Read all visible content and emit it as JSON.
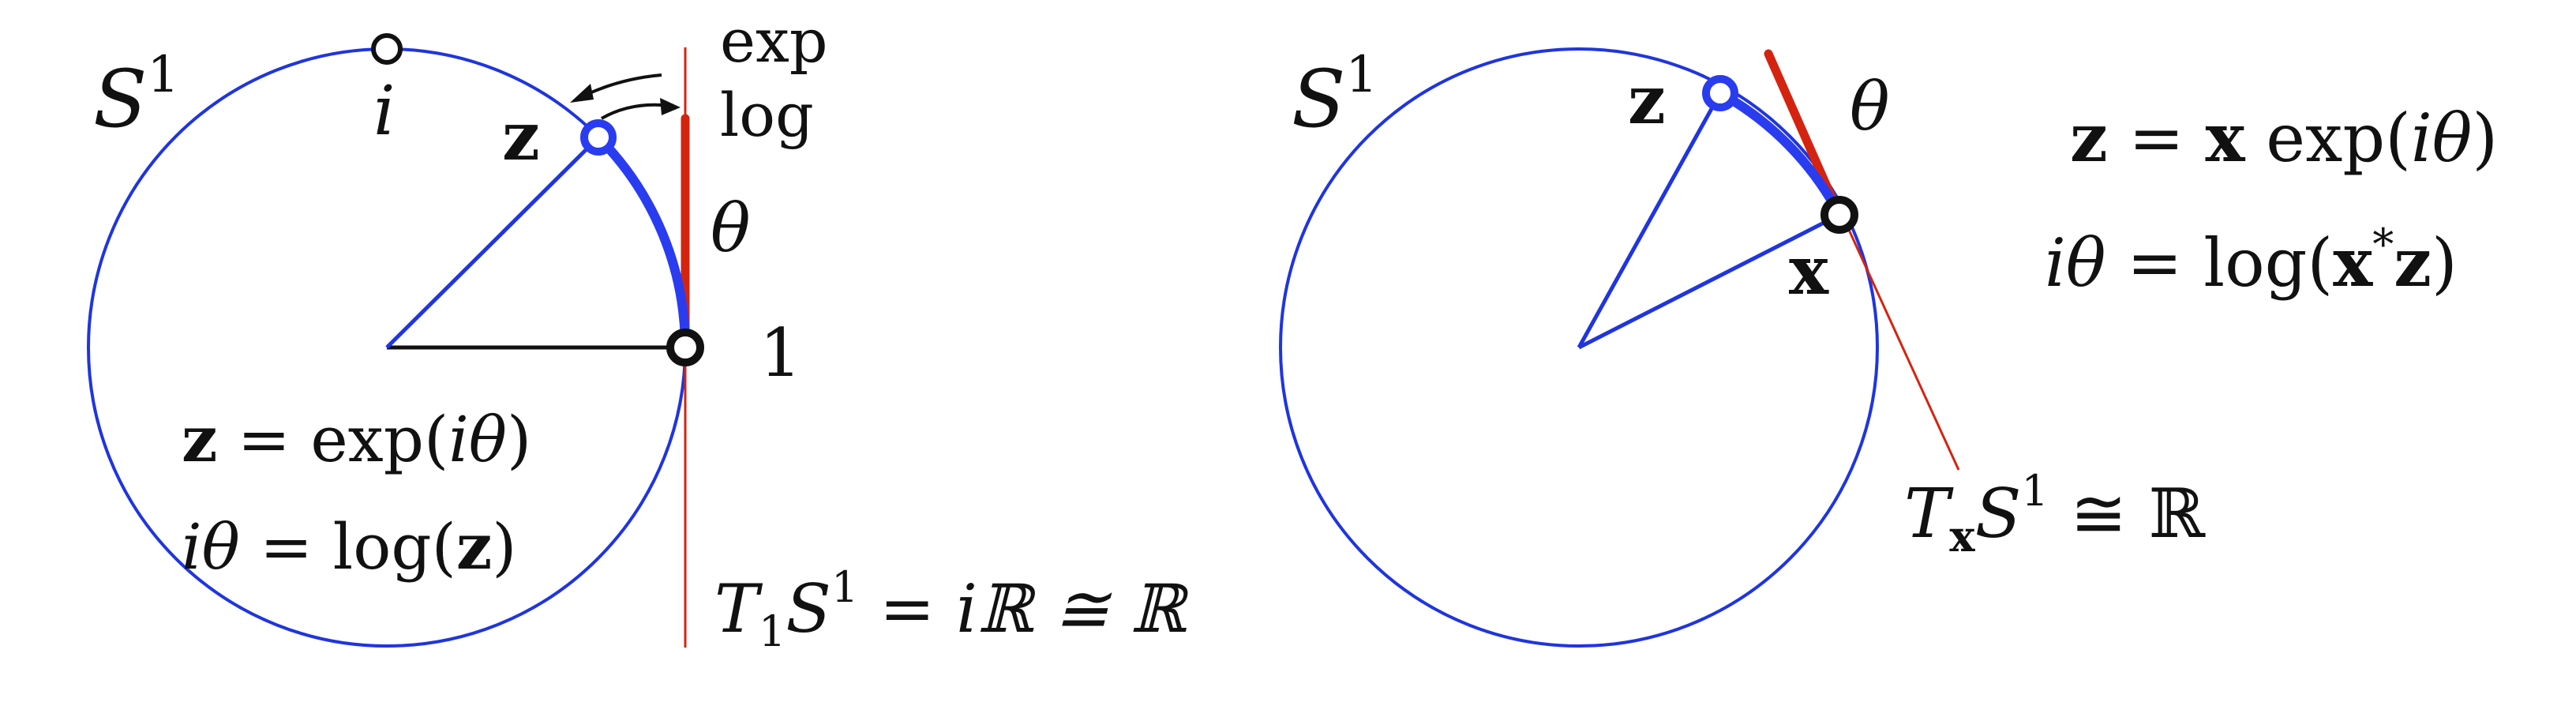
{
  "colors": {
    "circle": "#1f35e0",
    "highlight": "#2a3cf0",
    "tangent": "#d42410",
    "ink": "#111111",
    "background": "#ffffff"
  },
  "left_panel": {
    "manifold": {
      "base": "S",
      "sup": "1"
    },
    "point_i": "i",
    "point_z": "z",
    "point_one": "1",
    "map_exp": "exp",
    "map_log": "log",
    "angle": "θ",
    "equations": [
      {
        "lhs": "z",
        "op": " = ",
        "rhs": "exp(",
        "arg": "iθ",
        "close": ")"
      },
      {
        "lhs": "iθ",
        "op": " = ",
        "rhs": "log(",
        "arg": "z",
        "close": ")"
      }
    ],
    "tangent_space": {
      "T": "T",
      "sub": "1",
      "S": "S",
      "sup": "1",
      "rest": " = iℝ ≅ ℝ"
    }
  },
  "right_panel": {
    "manifold": {
      "base": "S",
      "sup": "1"
    },
    "point_z": "z",
    "point_x": "x",
    "angle": "θ",
    "equations": [
      {
        "lhs": "z",
        "op": " = ",
        "x": "x",
        "rhs": " exp(",
        "arg": "iθ",
        "close": ")"
      },
      {
        "lhs": "iθ",
        "op": " = log(",
        "x": "x",
        "star": "*",
        "z": "z",
        "close": ")"
      }
    ],
    "tangent_space": {
      "T": "T",
      "sub": "x",
      "S": "S",
      "sup": "1",
      "rest": " ≅ ℝ"
    }
  }
}
